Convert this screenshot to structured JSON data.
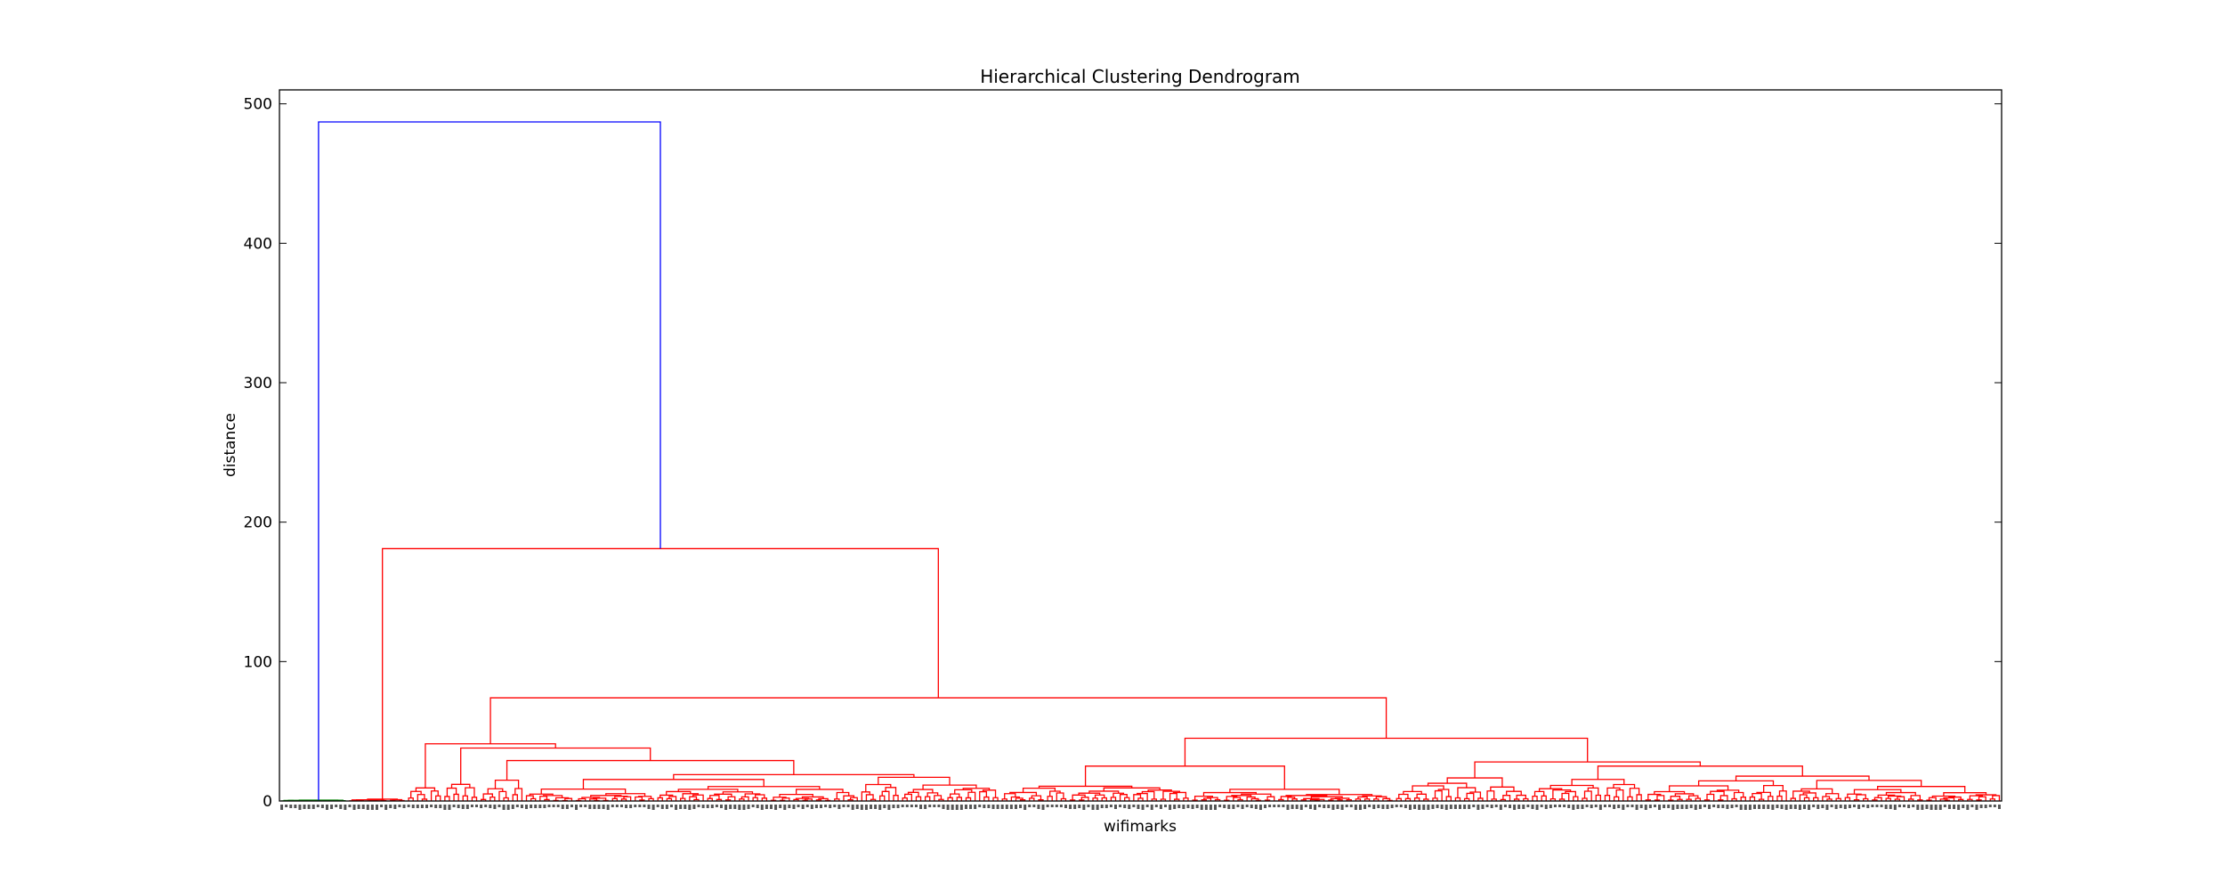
{
  "chart_data": {
    "type": "dendrogram",
    "title": "Hierarchical Clustering Dendrogram",
    "xlabel": "wifimarks",
    "ylabel": "distance",
    "ylim": [
      0,
      510
    ],
    "yticks": [
      0,
      100,
      200,
      300,
      400,
      500
    ],
    "grid": false,
    "colors": {
      "root_link": "#0000ff",
      "main_cluster": "#ff0000",
      "small_cluster": "#008000"
    },
    "leaf_count": 380,
    "links": [
      {
        "role": "root",
        "height": 487,
        "color": "#0000ff",
        "left_leaves": [
          0,
          14
        ],
        "right_leaves": [
          15,
          379
        ]
      },
      {
        "role": "main-split",
        "height": 181,
        "color": "#ff0000",
        "left_leaves": [
          15,
          27
        ],
        "right_leaves": [
          28,
          379
        ]
      },
      {
        "role": "sub-split",
        "height": 74,
        "color": "#ff0000",
        "left_leaves": [
          28,
          158
        ],
        "right_leaves": [
          159,
          379
        ]
      },
      {
        "role": "right-group",
        "height": 45,
        "color": "#ff0000",
        "left_leaves": [
          159,
          245
        ],
        "right_leaves": [
          246,
          379
        ]
      },
      {
        "role": "left-group",
        "height": 41,
        "color": "#ff0000",
        "left_leaves": [
          28,
          35
        ],
        "right_leaves": [
          36,
          158
        ]
      },
      {
        "role": "left-inner",
        "height": 38,
        "color": "#ff0000",
        "left_leaves": [
          36,
          43
        ],
        "right_leaves": [
          44,
          158
        ]
      },
      {
        "role": "left-inner-2",
        "height": 29,
        "color": "#ff0000",
        "left_leaves": [
          44,
          53
        ],
        "right_leaves": [
          54,
          158
        ]
      },
      {
        "role": "mid-cluster",
        "height": 25,
        "color": "#ff0000",
        "left_leaves": [
          159,
          200
        ],
        "right_leaves": [
          201,
          245
        ]
      },
      {
        "role": "right-inner",
        "height": 28,
        "color": "#ff0000",
        "left_leaves": [
          246,
          275
        ],
        "right_leaves": [
          276,
          379
        ]
      },
      {
        "role": "right-inner-2",
        "height": 25,
        "color": "#ff0000",
        "left_leaves": [
          276,
          300
        ],
        "right_leaves": [
          301,
          379
        ]
      }
    ]
  }
}
